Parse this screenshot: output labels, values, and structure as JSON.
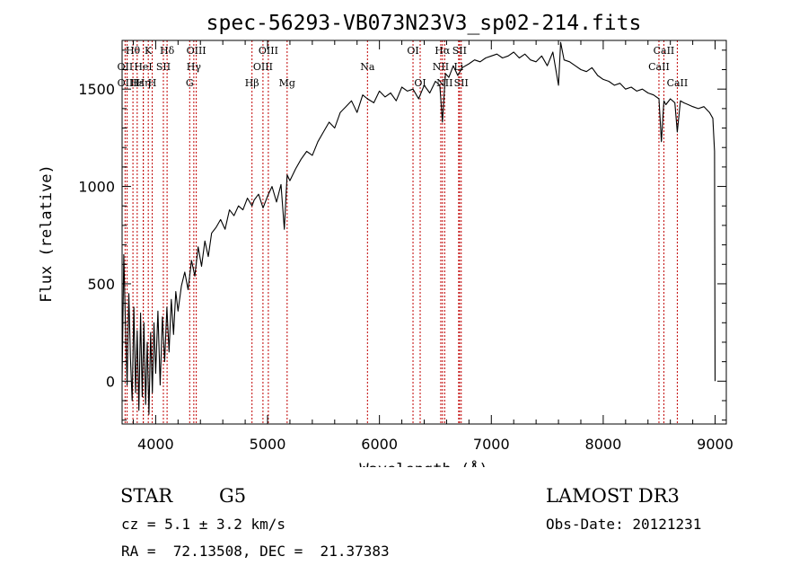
{
  "chart_data": {
    "type": "line",
    "title": "spec-56293-VB073N23V3_sp02-214.fits",
    "xlabel": "Wavelength (Å)",
    "ylabel": "Flux (relative)",
    "xlim": [
      3700,
      9100
    ],
    "ylim": [
      -220,
      1750
    ],
    "xticks": [
      4000,
      5000,
      6000,
      7000,
      8000,
      9000
    ],
    "yticks": [
      0,
      500,
      1000,
      1500
    ],
    "series": [
      {
        "name": "spectrum",
        "x": [
          3700,
          3715,
          3730,
          3745,
          3760,
          3775,
          3790,
          3805,
          3820,
          3835,
          3850,
          3865,
          3880,
          3895,
          3910,
          3925,
          3940,
          3955,
          3970,
          3985,
          4000,
          4020,
          4040,
          4060,
          4080,
          4100,
          4120,
          4140,
          4160,
          4180,
          4200,
          4230,
          4260,
          4290,
          4320,
          4350,
          4380,
          4410,
          4440,
          4470,
          4500,
          4540,
          4580,
          4620,
          4660,
          4700,
          4740,
          4780,
          4820,
          4861,
          4880,
          4920,
          4960,
          5000,
          5040,
          5080,
          5120,
          5150,
          5175,
          5200,
          5250,
          5300,
          5350,
          5400,
          5450,
          5500,
          5550,
          5600,
          5650,
          5700,
          5750,
          5800,
          5850,
          5893,
          5950,
          6000,
          6050,
          6100,
          6150,
          6200,
          6250,
          6300,
          6350,
          6400,
          6450,
          6500,
          6540,
          6563,
          6590,
          6620,
          6660,
          6700,
          6740,
          6800,
          6850,
          6900,
          6950,
          7000,
          7050,
          7100,
          7150,
          7200,
          7250,
          7300,
          7350,
          7400,
          7450,
          7500,
          7550,
          7600,
          7620,
          7650,
          7700,
          7750,
          7800,
          7850,
          7900,
          7950,
          8000,
          8050,
          8100,
          8150,
          8200,
          8250,
          8300,
          8350,
          8400,
          8450,
          8498,
          8520,
          8542,
          8560,
          8600,
          8640,
          8662,
          8690,
          8720,
          8760,
          8800,
          8850,
          8900,
          8950,
          8980,
          8995,
          9000
        ],
        "values": [
          0,
          650,
          300,
          -20,
          450,
          120,
          -100,
          380,
          -60,
          260,
          -150,
          350,
          -80,
          300,
          -120,
          200,
          -170,
          250,
          -60,
          300,
          40,
          360,
          -20,
          330,
          100,
          380,
          150,
          420,
          240,
          460,
          360,
          490,
          560,
          470,
          620,
          540,
          690,
          590,
          720,
          640,
          760,
          790,
          830,
          780,
          880,
          850,
          900,
          880,
          940,
          900,
          930,
          960,
          890,
          950,
          1000,
          920,
          1010,
          780,
          1060,
          1030,
          1090,
          1140,
          1180,
          1160,
          1230,
          1280,
          1330,
          1300,
          1380,
          1410,
          1440,
          1380,
          1470,
          1450,
          1430,
          1490,
          1460,
          1480,
          1440,
          1510,
          1490,
          1500,
          1450,
          1520,
          1480,
          1540,
          1520,
          1330,
          1580,
          1560,
          1620,
          1570,
          1610,
          1630,
          1650,
          1640,
          1660,
          1670,
          1680,
          1660,
          1670,
          1690,
          1660,
          1680,
          1650,
          1640,
          1670,
          1620,
          1690,
          1520,
          1740,
          1650,
          1640,
          1620,
          1600,
          1590,
          1610,
          1570,
          1550,
          1540,
          1520,
          1530,
          1500,
          1510,
          1490,
          1500,
          1480,
          1470,
          1450,
          1230,
          1440,
          1420,
          1450,
          1430,
          1280,
          1440,
          1430,
          1420,
          1410,
          1400,
          1410,
          1380,
          1350,
          1180,
          0
        ]
      }
    ],
    "line_labels": [
      {
        "label": "Hθ",
        "x": 3797,
        "row": 0
      },
      {
        "label": "OII",
        "x": 3727,
        "row": 1
      },
      {
        "label": "OIII",
        "x": 3745,
        "row": 2
      },
      {
        "label": "Hε",
        "x": 3835,
        "row": 2
      },
      {
        "label": "HeI",
        "x": 3889,
        "row": 1
      },
      {
        "label": "K",
        "x": 3934,
        "row": 0
      },
      {
        "label": "Hη",
        "x": 3890,
        "row": 2
      },
      {
        "label": "H",
        "x": 3969,
        "row": 2
      },
      {
        "label": "SII",
        "x": 4069,
        "row": 1
      },
      {
        "label": "Hδ",
        "x": 4102,
        "row": 0
      },
      {
        "label": "OIII",
        "x": 4363,
        "row": 0
      },
      {
        "label": "Hγ",
        "x": 4341,
        "row": 1
      },
      {
        "label": "G",
        "x": 4304,
        "row": 2
      },
      {
        "label": "Hβ",
        "x": 4861,
        "row": 2
      },
      {
        "label": "OIII",
        "x": 5007,
        "row": 0
      },
      {
        "label": "OIII",
        "x": 4959,
        "row": 1
      },
      {
        "label": "Mg",
        "x": 5175,
        "row": 2
      },
      {
        "label": "Na",
        "x": 5893,
        "row": 1
      },
      {
        "label": "OI",
        "x": 6300,
        "row": 0
      },
      {
        "label": "OI",
        "x": 6364,
        "row": 2
      },
      {
        "label": "Hα",
        "x": 6563,
        "row": 0
      },
      {
        "label": "NII",
        "x": 6548,
        "row": 1
      },
      {
        "label": "NII",
        "x": 6583,
        "row": 2
      },
      {
        "label": "SII",
        "x": 6716,
        "row": 0
      },
      {
        "label": "Li",
        "x": 6708,
        "row": 1
      },
      {
        "label": "SII",
        "x": 6731,
        "row": 2
      },
      {
        "label": "CaII",
        "x": 8542,
        "row": 0
      },
      {
        "label": "CaII",
        "x": 8498,
        "row": 1
      },
      {
        "label": "CaII",
        "x": 8662,
        "row": 2
      }
    ],
    "line_color": "#c00000"
  },
  "info": {
    "class_label": "STAR",
    "subclass": "G5",
    "survey": "LAMOST DR3",
    "cz": "cz = 5.1 ± 3.2 km/s",
    "obs_date": "Obs-Date: 20121231",
    "coords": "RA =  72.13508, DEC =  21.37383"
  }
}
